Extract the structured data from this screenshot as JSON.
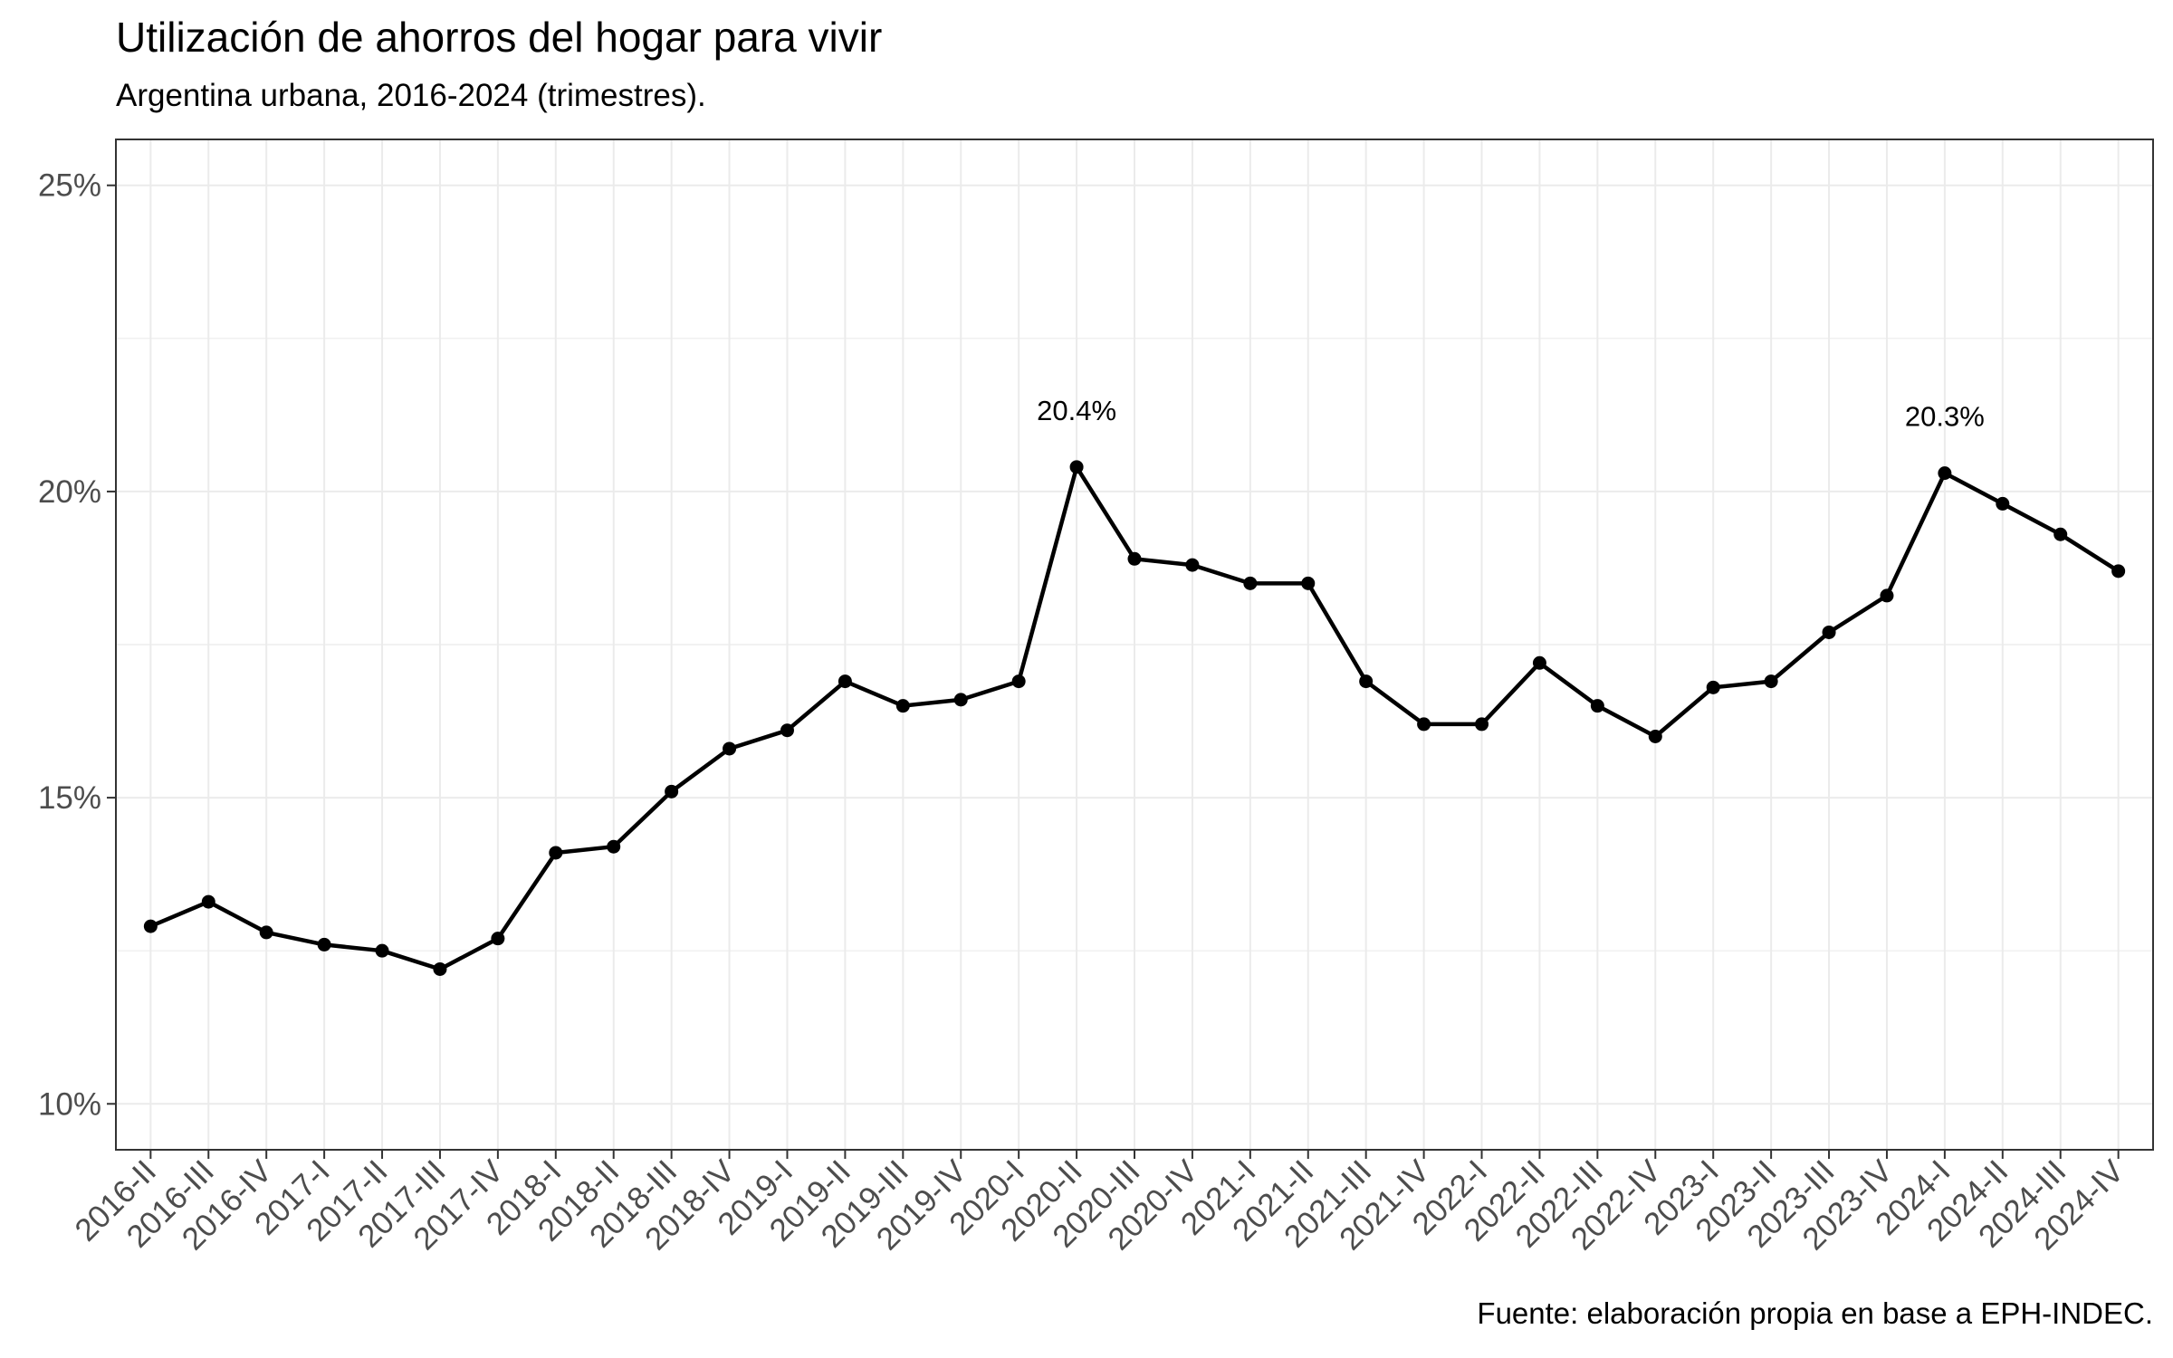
{
  "chart_data": {
    "type": "line",
    "title": "Utilización de ahorros del hogar para vivir",
    "subtitle": "Argentina urbana, 2016-2024 (trimestres).",
    "caption": "Fuente: elaboración propia en base a EPH-INDEC.",
    "xlabel": "",
    "ylabel": "",
    "ylim": [
      9.25,
      25.75
    ],
    "y_ticks": [
      10,
      15,
      20,
      25
    ],
    "y_tick_labels": [
      "10%",
      "15%",
      "20%",
      "25%"
    ],
    "grid": true,
    "categories": [
      "2016-II",
      "2016-III",
      "2016-IV",
      "2017-I",
      "2017-II",
      "2017-III",
      "2017-IV",
      "2018-I",
      "2018-II",
      "2018-III",
      "2018-IV",
      "2019-I",
      "2019-II",
      "2019-III",
      "2019-IV",
      "2020-I",
      "2020-II",
      "2020-III",
      "2020-IV",
      "2021-I",
      "2021-II",
      "2021-III",
      "2021-IV",
      "2022-I",
      "2022-II",
      "2022-III",
      "2022-IV",
      "2023-I",
      "2023-II",
      "2023-III",
      "2023-IV",
      "2024-I",
      "2024-II",
      "2024-III",
      "2024-IV"
    ],
    "series": [
      {
        "values": [
          12.9,
          13.3,
          12.8,
          12.6,
          12.5,
          12.2,
          12.7,
          14.1,
          14.2,
          15.1,
          15.8,
          16.1,
          16.9,
          16.5,
          16.6,
          16.9,
          20.4,
          18.9,
          18.8,
          18.5,
          18.5,
          16.9,
          16.2,
          16.2,
          17.2,
          16.5,
          16.0,
          16.8,
          16.9,
          17.7,
          18.3,
          20.3,
          19.8,
          19.3,
          18.7
        ]
      }
    ],
    "annotations": [
      {
        "category": "2020-II",
        "value": 20.4,
        "text": "20.4%"
      },
      {
        "category": "2024-I",
        "value": 20.3,
        "text": "20.3%"
      }
    ],
    "colors": {
      "line": "#000000",
      "grid": "#ebebeb",
      "panel_border": "#333333",
      "tick_text": "#4d4d4d"
    }
  }
}
